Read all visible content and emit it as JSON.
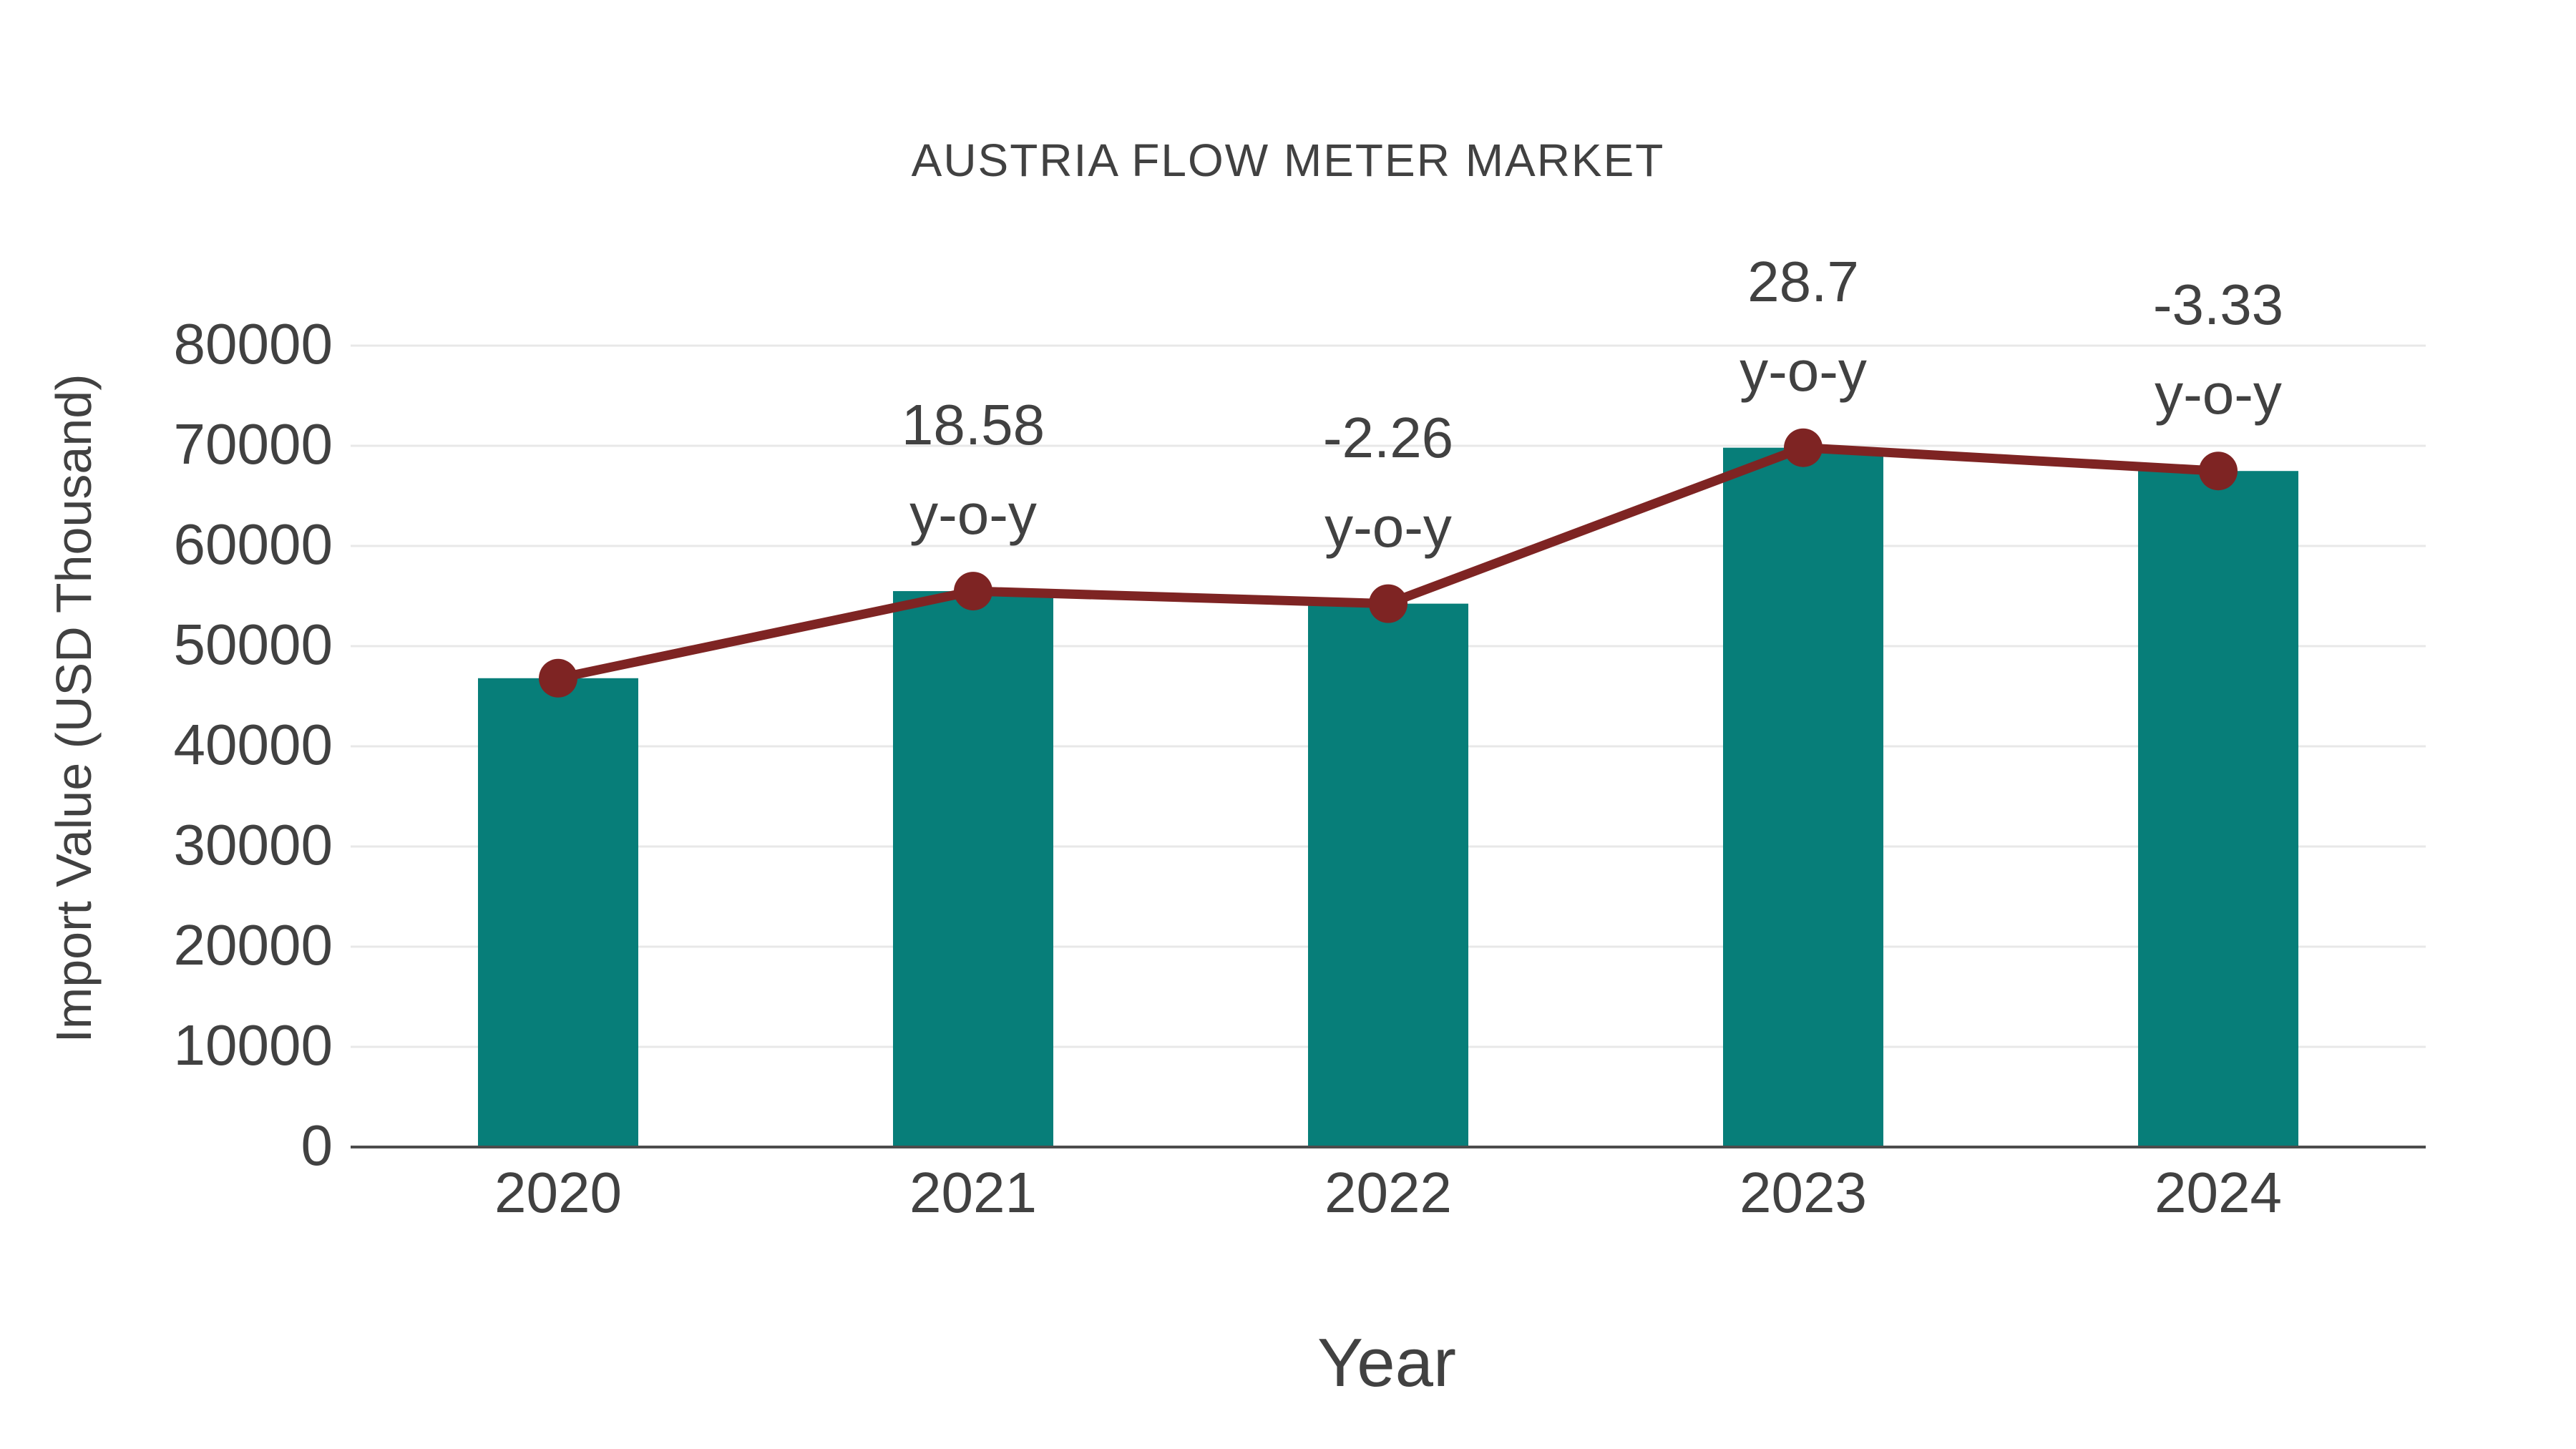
{
  "figure": {
    "background": "#ffffff"
  },
  "chart_data": {
    "type": "bar",
    "title": "AUSTRIA FLOW METER MARKET",
    "xlabel": "Year",
    "ylabel": "Import Value (USD Thousand)",
    "categories": [
      "2020",
      "2021",
      "2022",
      "2023",
      "2024"
    ],
    "series": [
      {
        "name": "Import Value bars",
        "type": "bar",
        "color": "#077e79",
        "values": [
          46800,
          55495,
          54241,
          69808,
          67484
        ]
      },
      {
        "name": "Import Value trend line",
        "type": "line",
        "color": "#7e2423",
        "values": [
          46800,
          55495,
          54241,
          69808,
          67484
        ]
      }
    ],
    "annotations": [
      {
        "category_index": 1,
        "text_line1": "18.58",
        "text_line2": "y-o-y"
      },
      {
        "category_index": 2,
        "text_line1": "-2.26",
        "text_line2": "y-o-y"
      },
      {
        "category_index": 3,
        "text_line1": "28.7",
        "text_line2": "y-o-y"
      },
      {
        "category_index": 4,
        "text_line1": "-3.33",
        "text_line2": "y-o-y"
      }
    ],
    "ylim": [
      0,
      85000
    ],
    "ytick_step": 10000,
    "yticks": [
      0,
      10000,
      20000,
      30000,
      40000,
      50000,
      60000,
      70000,
      80000
    ],
    "grid": true,
    "legend_position": "none",
    "colors": {
      "bar": "#077e79",
      "line": "#7e2423",
      "text": "#414141",
      "grid": "#e8e8e8",
      "axis": "#4c4c4c"
    }
  }
}
